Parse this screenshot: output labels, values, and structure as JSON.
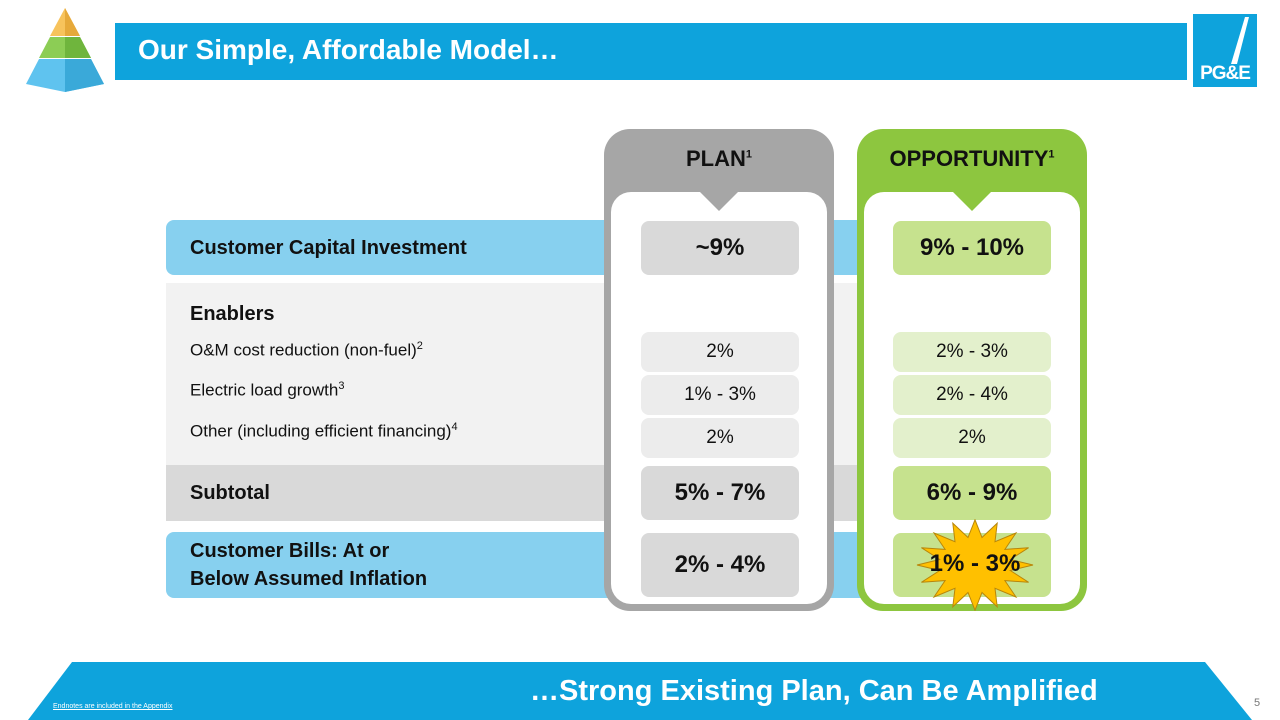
{
  "header": {
    "title": "Our Simple, Affordable Model…",
    "logo_text": "PG&E",
    "pyramid": "pyramid-icon"
  },
  "columns": {
    "plan": {
      "label": "PLAN",
      "sup": "1"
    },
    "opportunity": {
      "label": "OPPORTUNITY",
      "sup": "1"
    }
  },
  "rows": {
    "capital": {
      "label": "Customer Capital Investment",
      "plan": "~9%",
      "opportunity": "9% - 10%"
    },
    "enablers": {
      "label": "Enablers"
    },
    "om": {
      "label": "O&M cost reduction (non-fuel)",
      "sup": "2",
      "plan": "2%",
      "opportunity": "2% - 3%"
    },
    "load": {
      "label": "Electric load growth",
      "sup": "3",
      "plan": "1% - 3%",
      "opportunity": "2% - 4%"
    },
    "other": {
      "label": "Other (including efficient financing)",
      "sup": "4",
      "plan": "2%",
      "opportunity": "2%"
    },
    "subtotal": {
      "label": "Subtotal",
      "plan": "5% - 7%",
      "opportunity": "6% - 9%"
    },
    "bills": {
      "label_line1": "Customer Bills: At or",
      "label_line2": "Below Assumed Inflation",
      "plan": "2% - 4%",
      "opportunity": "1% - 3%"
    }
  },
  "footer": {
    "tagline": "…Strong Existing Plan, Can Be Amplified",
    "footnote": "Endnotes are included in the Appendix",
    "page": "5"
  },
  "colors": {
    "brand_blue": "#0ea3dc",
    "light_blue": "#87d0ef",
    "plan_gray": "#a6a6a6",
    "opportunity_green": "#8dc63f",
    "burst_yellow": "#ffc000"
  }
}
